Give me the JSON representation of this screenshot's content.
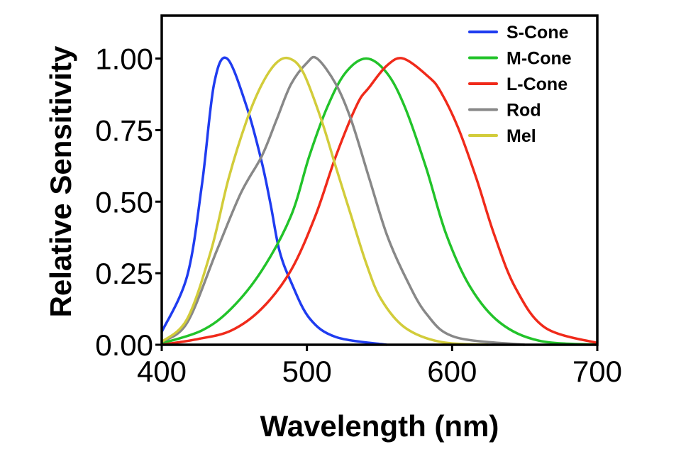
{
  "chart_data": {
    "type": "line",
    "title": "",
    "xlabel": "Wavelength (nm)",
    "ylabel": "Relative Sensitivity",
    "xlim": [
      400,
      700
    ],
    "ylim": [
      0,
      1.15
    ],
    "xticks": [
      "400",
      "500",
      "600",
      "700"
    ],
    "yticks": [
      "0.00",
      "0.25",
      "0.50",
      "0.75",
      "1.00"
    ],
    "grid": false,
    "legend_position": "top-right",
    "series": [
      {
        "name": "S-Cone",
        "color": "#1f3cf0",
        "x": [
          400,
          417.5,
          427.7,
          436,
          445,
          458.6,
          468.8,
          475,
          481,
          489,
          501.7,
          520,
          555
        ],
        "y": [
          0.045,
          0.24,
          0.56,
          0.91,
          1.0,
          0.83,
          0.64,
          0.49,
          0.33,
          0.22,
          0.093,
          0.027,
          0.0
        ]
      },
      {
        "name": "M-Cone",
        "color": "#22c32a",
        "x": [
          400,
          427.7,
          448,
          469,
          489,
          501.7,
          514,
          526.5,
          540.8,
          555,
          567.5,
          582,
          596,
          612.7,
          633,
          660,
          700
        ],
        "y": [
          0.005,
          0.05,
          0.127,
          0.26,
          0.45,
          0.66,
          0.83,
          0.95,
          1.0,
          0.95,
          0.83,
          0.62,
          0.385,
          0.2,
          0.077,
          0.014,
          0.0
        ]
      },
      {
        "name": "L-Cone",
        "color": "#f02a1a",
        "x": [
          400,
          425,
          448,
          469,
          489,
          505.8,
          520,
          534.6,
          543,
          555,
          566.4,
          584,
          592,
          604,
          616.8,
          629,
          643.5,
          664,
          700
        ],
        "y": [
          0.0,
          0.02,
          0.05,
          0.127,
          0.26,
          0.45,
          0.66,
          0.84,
          0.9,
          0.975,
          1.0,
          0.935,
          0.885,
          0.76,
          0.58,
          0.385,
          0.2,
          0.06,
          0.006
        ]
      },
      {
        "name": "Rod",
        "color": "#888888",
        "x": [
          400,
          417.5,
          438,
          454.5,
          469,
          479,
          489,
          500,
          507,
          520,
          530.5,
          543,
          555,
          567.5,
          582,
          602,
          650
        ],
        "y": [
          0.01,
          0.077,
          0.33,
          0.53,
          0.66,
          0.785,
          0.91,
          0.985,
          1.0,
          0.91,
          0.785,
          0.58,
          0.385,
          0.24,
          0.11,
          0.027,
          0.0
        ]
      },
      {
        "name": "Mel",
        "color": "#d2cc3a",
        "x": [
          400,
          417.5,
          434,
          446,
          458.6,
          469,
          479,
          488,
          497.6,
          510,
          520,
          530.5,
          540.8,
          551,
          567.5,
          592,
          625
        ],
        "y": [
          0.01,
          0.09,
          0.33,
          0.58,
          0.785,
          0.91,
          0.985,
          1.0,
          0.95,
          0.785,
          0.62,
          0.45,
          0.285,
          0.16,
          0.06,
          0.01,
          0.0
        ]
      }
    ]
  }
}
